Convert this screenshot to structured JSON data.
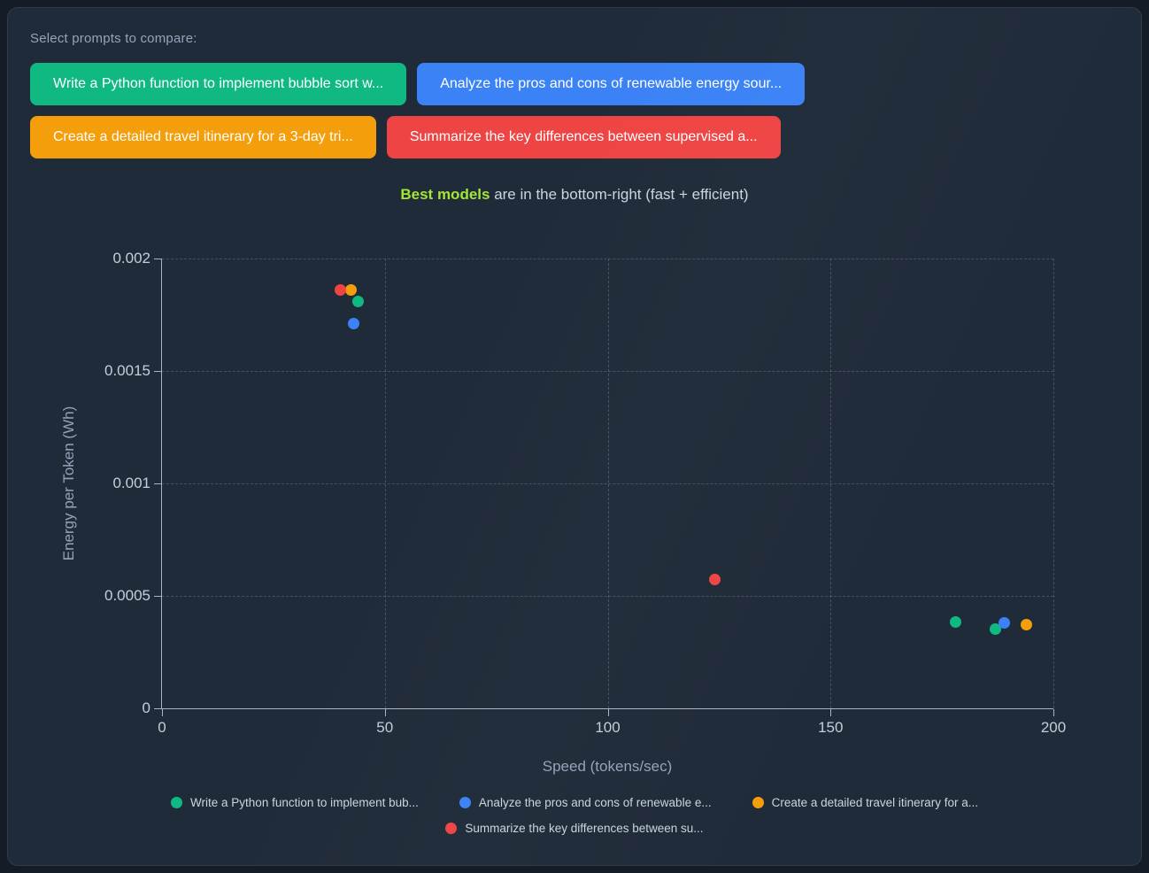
{
  "header": {
    "select_label": "Select prompts to compare:"
  },
  "prompt_buttons": [
    {
      "id": "bubble-sort",
      "label": "Write a Python function to implement bubble sort w...",
      "color": "#10b981"
    },
    {
      "id": "renewable-energy",
      "label": "Analyze the pros and cons of renewable energy sour...",
      "color": "#3b82f6"
    },
    {
      "id": "travel-itinerary",
      "label": "Create a detailed travel itinerary for a 3-day tri...",
      "color": "#f59e0b"
    },
    {
      "id": "supervised-learning",
      "label": "Summarize the key differences between supervised a...",
      "color": "#ef4444"
    }
  ],
  "subtitle": {
    "highlight": "Best models",
    "highlight_color": "#a3e635",
    "rest": " are in the bottom-right (fast + efficient)"
  },
  "chart_data": {
    "type": "scatter",
    "xlabel": "Speed (tokens/sec)",
    "ylabel": "Energy per Token (Wh)",
    "xlim": [
      0,
      200
    ],
    "ylim": [
      0,
      0.002
    ],
    "grid": "dashed",
    "legend_position": "bottom",
    "x_ticks": [
      {
        "value": 0,
        "label": "0"
      },
      {
        "value": 50,
        "label": "50"
      },
      {
        "value": 100,
        "label": "100"
      },
      {
        "value": 150,
        "label": "150"
      },
      {
        "value": 200,
        "label": "200"
      }
    ],
    "y_ticks": [
      {
        "value": 0,
        "label": "0"
      },
      {
        "value": 0.0005,
        "label": "0.0005"
      },
      {
        "value": 0.001,
        "label": "0.001"
      },
      {
        "value": 0.0015,
        "label": "0.0015"
      },
      {
        "value": 0.002,
        "label": "0.002"
      }
    ],
    "series": [
      {
        "name": "Write a Python function to implement bub...",
        "color": "#10b981",
        "points": [
          [
            44,
            0.00181
          ],
          [
            178,
            0.000385
          ],
          [
            187,
            0.000354
          ]
        ]
      },
      {
        "name": "Analyze the pros and cons of renewable e...",
        "color": "#3b82f6",
        "points": [
          [
            43,
            0.00171
          ],
          [
            189,
            0.000381
          ]
        ]
      },
      {
        "name": "Create a detailed travel itinerary for a...",
        "color": "#f59e0b",
        "points": [
          [
            42.5,
            0.00186
          ],
          [
            194,
            0.000373
          ]
        ]
      },
      {
        "name": "Summarize the key differences between su...",
        "color": "#ef4444",
        "points": [
          [
            40,
            0.00186
          ],
          [
            124,
            0.000574
          ]
        ]
      }
    ]
  }
}
